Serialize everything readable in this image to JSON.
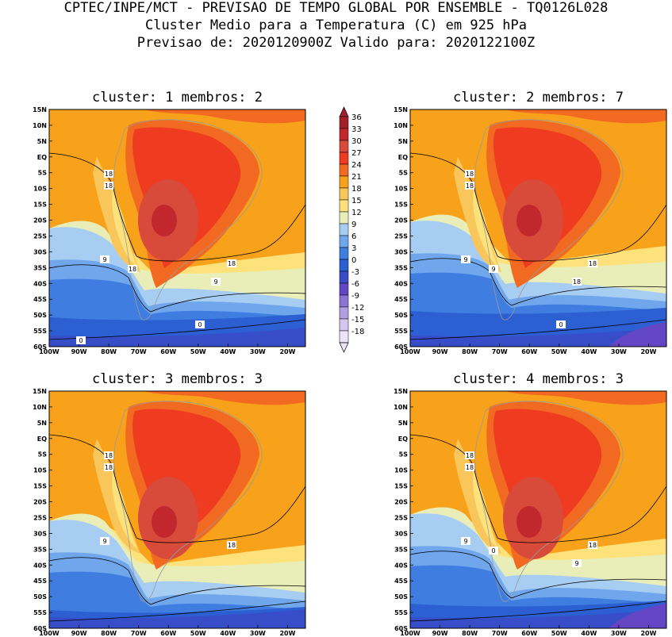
{
  "header": {
    "line1": "CPTEC/INPE/MCT - PREVISAO DE TEMPO GLOBAL POR ENSEMBLE - TQ0126L028",
    "line2": "Cluster Medio para a Temperatura (C) em 925 hPa",
    "line3": "Previsao de: 2020120900Z   Valido para: 2020122100Z"
  },
  "axes": {
    "lat_labels": [
      "15N",
      "10N",
      "5N",
      "EQ",
      "5S",
      "10S",
      "15S",
      "20S",
      "25S",
      "30S",
      "35S",
      "40S",
      "45S",
      "50S",
      "55S",
      "60S"
    ],
    "lon_labels": [
      "100W",
      "90W",
      "80W",
      "70W",
      "60W",
      "50W",
      "40W",
      "30W",
      "20W"
    ]
  },
  "colorbar": {
    "labels": [
      "36",
      "33",
      "30",
      "27",
      "24",
      "21",
      "18",
      "15",
      "12",
      "9",
      "6",
      "3",
      "0",
      "-3",
      "-6",
      "-9",
      "-12",
      "-15",
      "-18"
    ],
    "colors": [
      "#a3222a",
      "#c1272d",
      "#d84a3a",
      "#ef3b1f",
      "#f26a22",
      "#f7a21a",
      "#f8c65a",
      "#fde27c",
      "#e9eeb8",
      "#a8cdf3",
      "#6fa6ec",
      "#3f7ee0",
      "#2c5fd1",
      "#3a4bc7",
      "#6446c4",
      "#8c73d6",
      "#b39ee4",
      "#d3c6ef",
      "#ece4f8"
    ]
  },
  "panels": [
    {
      "title": "cluster: 1   membros: 2",
      "contour_labels": [
        "18",
        "18",
        "18",
        "9",
        "9",
        "18",
        "0",
        "0"
      ]
    },
    {
      "title": "cluster: 2   membros: 7",
      "contour_labels": [
        "18",
        "18",
        "18",
        "9",
        "18",
        "9",
        "0"
      ]
    },
    {
      "title": "cluster: 3   membros: 3",
      "contour_labels": [
        "18",
        "18",
        "18",
        "9"
      ]
    },
    {
      "title": "cluster: 4   membros: 3",
      "contour_labels": [
        "18",
        "18",
        "18",
        "9",
        "9",
        "0"
      ]
    }
  ]
}
